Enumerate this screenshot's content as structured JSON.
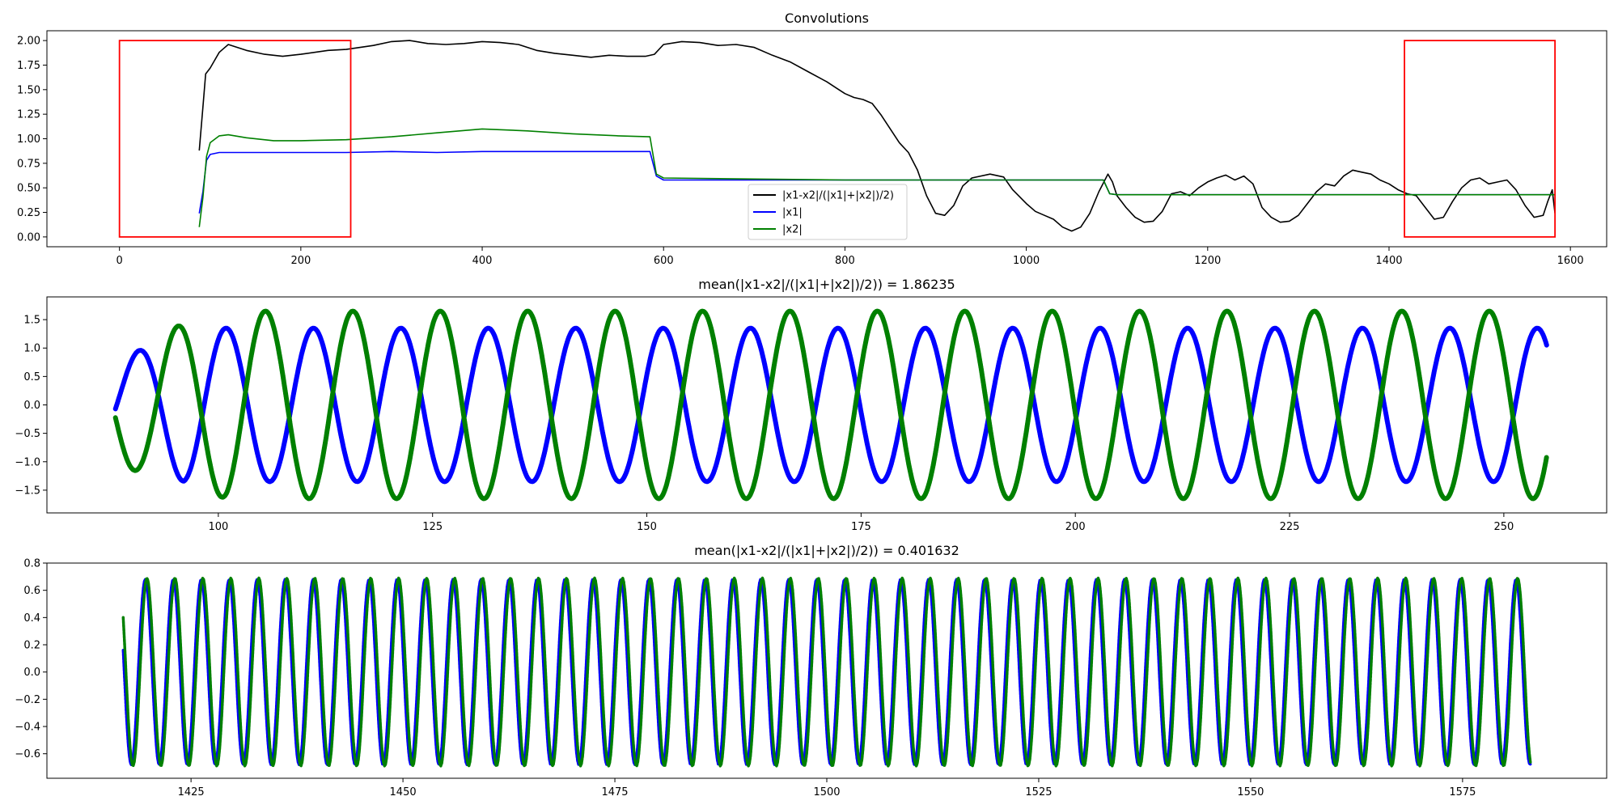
{
  "chart_data": [
    {
      "type": "line",
      "title": "Convolutions",
      "xlim": [
        -80,
        1640
      ],
      "ylim": [
        -0.1,
        2.1
      ],
      "xticks": [
        0,
        200,
        400,
        600,
        800,
        1000,
        1200,
        1400,
        1600
      ],
      "yticks": [
        0.0,
        0.25,
        0.5,
        0.75,
        1.0,
        1.25,
        1.5,
        1.75,
        2.0
      ],
      "xtick_labels": [
        "0",
        "200",
        "400",
        "600",
        "800",
        "1000",
        "1200",
        "1400",
        "1600"
      ],
      "ytick_labels": [
        "0.00",
        "0.25",
        "0.50",
        "0.75",
        "1.00",
        "1.25",
        "1.50",
        "1.75",
        "2.00"
      ],
      "legend_position": "lower-center",
      "highlight_boxes": [
        {
          "x": [
            0,
            255
          ],
          "y": [
            0.0,
            2.0
          ],
          "color": "#ff0000"
        },
        {
          "x": [
            1417,
            1583
          ],
          "y": [
            0.0,
            2.0
          ],
          "color": "#ff0000"
        }
      ],
      "series": [
        {
          "name": "|x1-x2|/(|x1|+|x2|)/2)",
          "color": "#000000",
          "points": [
            [
              88,
              0.88
            ],
            [
              92,
              1.32
            ],
            [
              95,
              1.66
            ],
            [
              100,
              1.72
            ],
            [
              105,
              1.8
            ],
            [
              110,
              1.88
            ],
            [
              115,
              1.92
            ],
            [
              120,
              1.96
            ],
            [
              130,
              1.93
            ],
            [
              140,
              1.9
            ],
            [
              160,
              1.86
            ],
            [
              180,
              1.84
            ],
            [
              200,
              1.86
            ],
            [
              230,
              1.9
            ],
            [
              250,
              1.91
            ],
            [
              280,
              1.95
            ],
            [
              300,
              1.99
            ],
            [
              320,
              2.0
            ],
            [
              340,
              1.97
            ],
            [
              360,
              1.96
            ],
            [
              380,
              1.97
            ],
            [
              400,
              1.99
            ],
            [
              420,
              1.98
            ],
            [
              440,
              1.96
            ],
            [
              460,
              1.9
            ],
            [
              480,
              1.87
            ],
            [
              500,
              1.85
            ],
            [
              520,
              1.83
            ],
            [
              540,
              1.85
            ],
            [
              560,
              1.84
            ],
            [
              580,
              1.84
            ],
            [
              590,
              1.86
            ],
            [
              600,
              1.96
            ],
            [
              620,
              1.99
            ],
            [
              640,
              1.98
            ],
            [
              660,
              1.95
            ],
            [
              680,
              1.96
            ],
            [
              700,
              1.93
            ],
            [
              720,
              1.85
            ],
            [
              740,
              1.78
            ],
            [
              760,
              1.68
            ],
            [
              780,
              1.58
            ],
            [
              790,
              1.52
            ],
            [
              800,
              1.46
            ],
            [
              810,
              1.42
            ],
            [
              820,
              1.4
            ],
            [
              830,
              1.36
            ],
            [
              840,
              1.24
            ],
            [
              850,
              1.1
            ],
            [
              860,
              0.96
            ],
            [
              870,
              0.86
            ],
            [
              880,
              0.68
            ],
            [
              890,
              0.42
            ],
            [
              900,
              0.24
            ],
            [
              910,
              0.22
            ],
            [
              920,
              0.32
            ],
            [
              930,
              0.52
            ],
            [
              940,
              0.6
            ],
            [
              960,
              0.64
            ],
            [
              975,
              0.61
            ],
            [
              985,
              0.48
            ],
            [
              1000,
              0.34
            ],
            [
              1010,
              0.26
            ],
            [
              1020,
              0.22
            ],
            [
              1030,
              0.18
            ],
            [
              1040,
              0.1
            ],
            [
              1050,
              0.06
            ],
            [
              1060,
              0.1
            ],
            [
              1070,
              0.24
            ],
            [
              1080,
              0.46
            ],
            [
              1090,
              0.64
            ],
            [
              1095,
              0.56
            ],
            [
              1100,
              0.42
            ],
            [
              1110,
              0.3
            ],
            [
              1120,
              0.2
            ],
            [
              1130,
              0.15
            ],
            [
              1140,
              0.16
            ],
            [
              1150,
              0.26
            ],
            [
              1160,
              0.44
            ],
            [
              1170,
              0.46
            ],
            [
              1180,
              0.42
            ],
            [
              1190,
              0.5
            ],
            [
              1200,
              0.56
            ],
            [
              1210,
              0.6
            ],
            [
              1220,
              0.63
            ],
            [
              1230,
              0.58
            ],
            [
              1240,
              0.62
            ],
            [
              1250,
              0.54
            ],
            [
              1260,
              0.3
            ],
            [
              1270,
              0.2
            ],
            [
              1280,
              0.15
            ],
            [
              1290,
              0.16
            ],
            [
              1300,
              0.22
            ],
            [
              1310,
              0.34
            ],
            [
              1320,
              0.46
            ],
            [
              1330,
              0.54
            ],
            [
              1340,
              0.52
            ],
            [
              1350,
              0.62
            ],
            [
              1360,
              0.68
            ],
            [
              1370,
              0.66
            ],
            [
              1380,
              0.64
            ],
            [
              1390,
              0.58
            ],
            [
              1400,
              0.54
            ],
            [
              1410,
              0.48
            ],
            [
              1420,
              0.44
            ],
            [
              1430,
              0.42
            ],
            [
              1440,
              0.3
            ],
            [
              1450,
              0.18
            ],
            [
              1460,
              0.2
            ],
            [
              1470,
              0.36
            ],
            [
              1480,
              0.5
            ],
            [
              1490,
              0.58
            ],
            [
              1500,
              0.6
            ],
            [
              1510,
              0.54
            ],
            [
              1520,
              0.56
            ],
            [
              1530,
              0.58
            ],
            [
              1540,
              0.48
            ],
            [
              1550,
              0.32
            ],
            [
              1560,
              0.2
            ],
            [
              1570,
              0.22
            ],
            [
              1575,
              0.36
            ],
            [
              1580,
              0.48
            ],
            [
              1583,
              0.24
            ]
          ]
        },
        {
          "name": "|x1|",
          "color": "#0000ff",
          "points": [
            [
              88,
              0.24
            ],
            [
              92,
              0.46
            ],
            [
              96,
              0.78
            ],
            [
              100,
              0.84
            ],
            [
              110,
              0.86
            ],
            [
              150,
              0.86
            ],
            [
              200,
              0.86
            ],
            [
              250,
              0.86
            ],
            [
              300,
              0.87
            ],
            [
              350,
              0.86
            ],
            [
              400,
              0.87
            ],
            [
              450,
              0.87
            ],
            [
              500,
              0.87
            ],
            [
              550,
              0.87
            ],
            [
              585,
              0.87
            ],
            [
              592,
              0.62
            ],
            [
              600,
              0.58
            ],
            [
              700,
              0.58
            ],
            [
              800,
              0.58
            ],
            [
              900,
              0.58
            ],
            [
              1000,
              0.58
            ],
            [
              1085,
              0.58
            ],
            [
              1092,
              0.44
            ],
            [
              1100,
              0.43
            ],
            [
              1200,
              0.43
            ],
            [
              1300,
              0.43
            ],
            [
              1400,
              0.43
            ],
            [
              1500,
              0.43
            ],
            [
              1583,
              0.43
            ]
          ]
        },
        {
          "name": "|x2|",
          "color": "#008000",
          "points": [
            [
              88,
              0.1
            ],
            [
              92,
              0.4
            ],
            [
              96,
              0.82
            ],
            [
              100,
              0.96
            ],
            [
              110,
              1.03
            ],
            [
              120,
              1.04
            ],
            [
              140,
              1.01
            ],
            [
              170,
              0.98
            ],
            [
              200,
              0.98
            ],
            [
              250,
              0.99
            ],
            [
              300,
              1.02
            ],
            [
              350,
              1.06
            ],
            [
              400,
              1.1
            ],
            [
              450,
              1.08
            ],
            [
              500,
              1.05
            ],
            [
              550,
              1.03
            ],
            [
              585,
              1.02
            ],
            [
              592,
              0.64
            ],
            [
              600,
              0.6
            ],
            [
              700,
              0.59
            ],
            [
              800,
              0.58
            ],
            [
              900,
              0.58
            ],
            [
              1000,
              0.58
            ],
            [
              1085,
              0.58
            ],
            [
              1092,
              0.44
            ],
            [
              1100,
              0.43
            ],
            [
              1200,
              0.43
            ],
            [
              1300,
              0.43
            ],
            [
              1400,
              0.43
            ],
            [
              1500,
              0.43
            ],
            [
              1583,
              0.43
            ]
          ]
        }
      ]
    },
    {
      "type": "line",
      "title": "mean(|x1-x2|/(|x1|+|x2|)/2)) = 1.86235",
      "xlim": [
        80,
        262
      ],
      "ylim": [
        -1.9,
        1.9
      ],
      "xticks": [
        100,
        125,
        150,
        175,
        200,
        225,
        250
      ],
      "yticks": [
        -1.5,
        -1.0,
        -0.5,
        0.0,
        0.5,
        1.0,
        1.5
      ],
      "xtick_labels": [
        "100",
        "125",
        "150",
        "175",
        "200",
        "225",
        "250"
      ],
      "ytick_labels": [
        "−1.5",
        "−1.0",
        "−0.5",
        "0.0",
        "0.5",
        "1.0",
        "1.5"
      ],
      "series": [
        {
          "name": "",
          "color": "#0000ff",
          "wave": {
            "start": 88,
            "end": 255,
            "period": 10.2,
            "phase_peak": 90.7,
            "amp_start": 0.75,
            "amp": 1.35,
            "ramp_end": 96
          }
        },
        {
          "name": "",
          "color": "#008000",
          "wave": {
            "start": 88,
            "end": 255,
            "period": 10.2,
            "phase_peak": 95.3,
            "amp_start": 1.05,
            "amp": 1.65,
            "ramp_end": 101
          }
        }
      ]
    },
    {
      "type": "line",
      "title": "mean(|x1-x2|/(|x1|+|x2|)/2)) = 0.401632",
      "xlim": [
        1408,
        1592
      ],
      "ylim": [
        -0.78,
        0.8
      ],
      "xticks": [
        1425,
        1450,
        1475,
        1500,
        1525,
        1550,
        1575
      ],
      "yticks": [
        -0.6,
        -0.4,
        -0.2,
        0.0,
        0.2,
        0.4,
        0.6,
        0.8
      ],
      "xtick_labels": [
        "1425",
        "1450",
        "1475",
        "1500",
        "1525",
        "1550",
        "1575"
      ],
      "ytick_labels": [
        "−0.6",
        "−0.4",
        "−0.2",
        "0.0",
        "0.2",
        "0.4",
        "0.6",
        "0.8"
      ],
      "series": [
        {
          "name": "",
          "color": "#0000ff",
          "wave": {
            "start": 1417,
            "end": 1583,
            "period": 3.3,
            "phase_peak": 1419.6,
            "amp_start": 0.68,
            "amp": 0.68,
            "ramp_end": 1417
          }
        },
        {
          "name": "",
          "color": "#008000",
          "wave": {
            "start": 1417,
            "end": 1583,
            "period": 3.3,
            "phase_peak": 1419.8,
            "amp_start": 0.68,
            "amp": 0.69,
            "ramp_end": 1417
          }
        }
      ]
    }
  ]
}
